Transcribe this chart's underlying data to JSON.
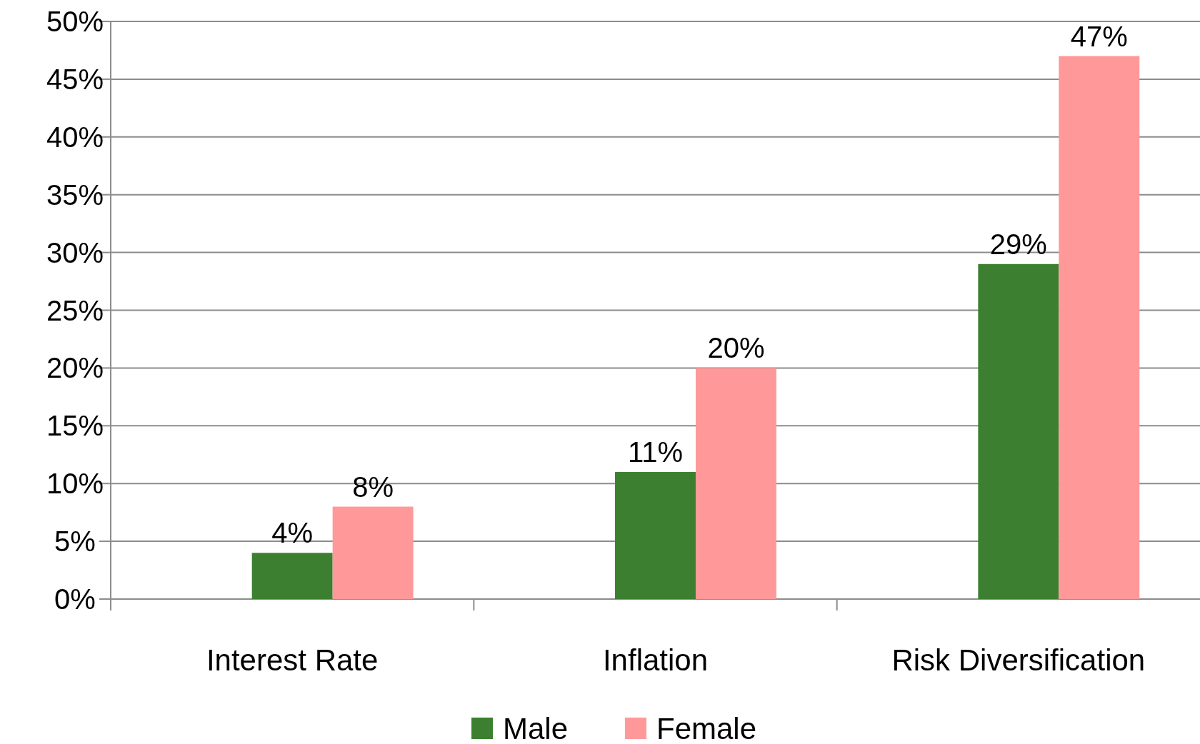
{
  "chart_data": {
    "type": "bar",
    "categories": [
      "Interest Rate",
      "Inflation",
      "Risk Diversification"
    ],
    "series": [
      {
        "name": "Male",
        "color": "#3d7f31",
        "values": [
          4,
          11,
          29
        ],
        "value_labels": [
          "4%",
          "11%",
          "29%"
        ]
      },
      {
        "name": "Female",
        "color": "#ff9999",
        "values": [
          8,
          20,
          47
        ],
        "value_labels": [
          "8%",
          "20%",
          "47%"
        ]
      }
    ],
    "ylim": [
      0,
      50
    ],
    "yticks": [
      {
        "value": 0,
        "label": "0%"
      },
      {
        "value": 5,
        "label": "5%"
      },
      {
        "value": 10,
        "label": "10%"
      },
      {
        "value": 15,
        "label": "15%"
      },
      {
        "value": 20,
        "label": "20%"
      },
      {
        "value": 25,
        "label": "25%"
      },
      {
        "value": 30,
        "label": "30%"
      },
      {
        "value": 35,
        "label": "35%"
      },
      {
        "value": 40,
        "label": "40%"
      },
      {
        "value": 45,
        "label": "45%"
      },
      {
        "value": 50,
        "label": "50%"
      }
    ],
    "grid": "y",
    "legend": "bottom"
  }
}
